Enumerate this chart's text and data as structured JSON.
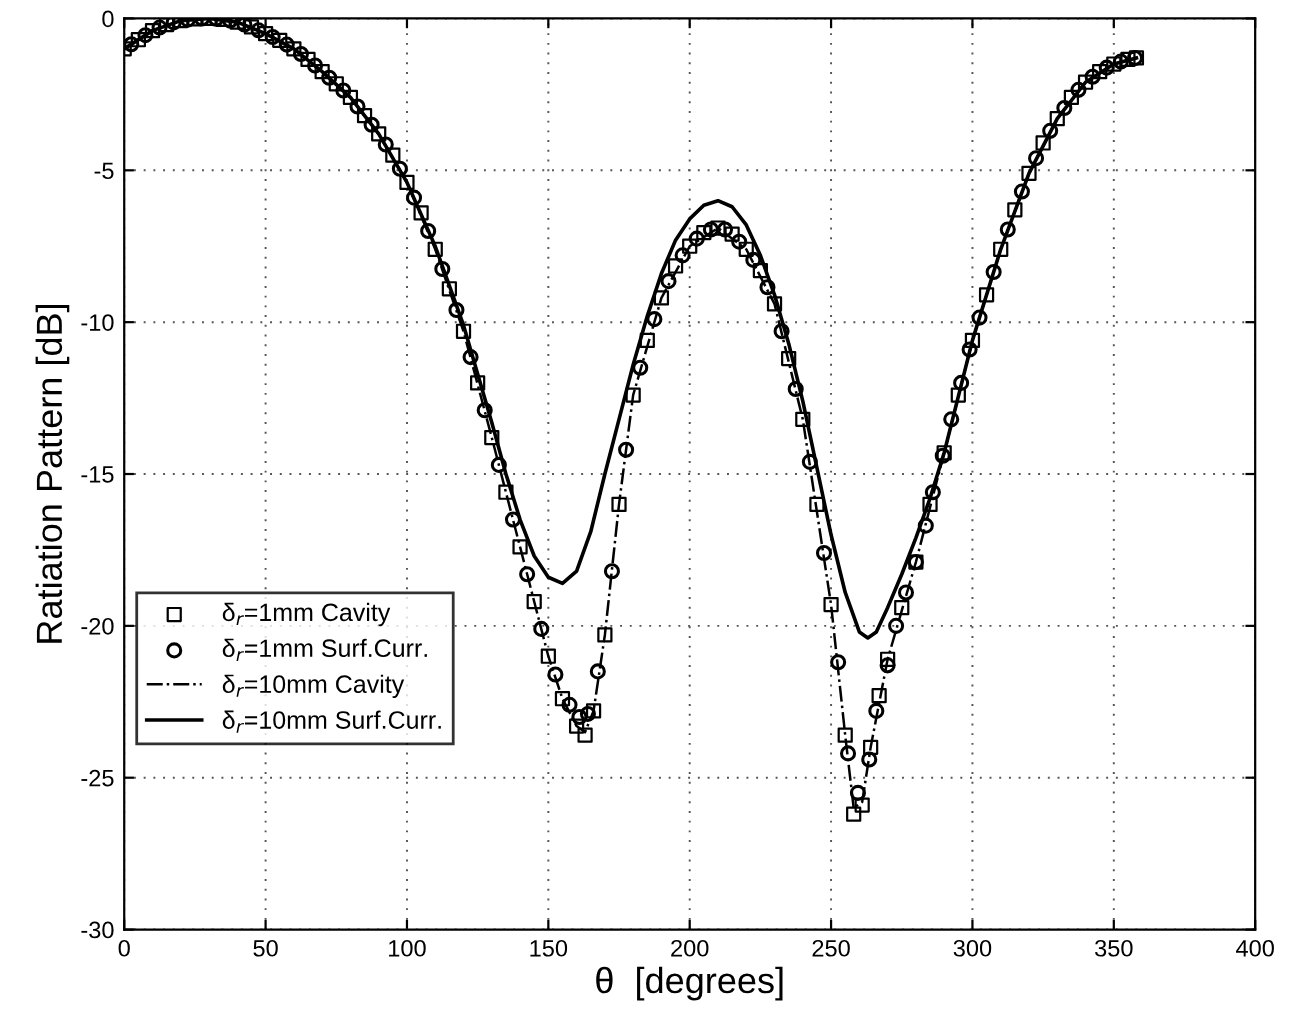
{
  "chart_data": {
    "type": "line",
    "xlabel": "θ  [degrees]",
    "ylabel": "Ratiation Pattern [dB]",
    "xlim": [
      0,
      400
    ],
    "ylim": [
      -30,
      0
    ],
    "xticks": [
      0,
      50,
      100,
      150,
      200,
      250,
      300,
      350,
      400
    ],
    "yticks": [
      -30,
      -25,
      -20,
      -15,
      -10,
      -5,
      0
    ],
    "grid": true,
    "legend": "bottom left",
    "series": [
      {
        "name": "δ$_{r}$=1mm Cavity",
        "type": "scatter",
        "marker": "square",
        "color": "#000000",
        "x": [
          0,
          5,
          10,
          15,
          20,
          25,
          30,
          35,
          40,
          45,
          50,
          55,
          60,
          65,
          70,
          75,
          80,
          85,
          90,
          95,
          100,
          105,
          110,
          115,
          120,
          125,
          130,
          135,
          140,
          145,
          150,
          155,
          160,
          163,
          166,
          170,
          175,
          180,
          185,
          190,
          195,
          200,
          205,
          210,
          215,
          220,
          225,
          230,
          235,
          240,
          245,
          250,
          255,
          258,
          261,
          264,
          267,
          270,
          275,
          280,
          285,
          290,
          295,
          300,
          305,
          310,
          315,
          320,
          325,
          330,
          335,
          340,
          345,
          350,
          355,
          358
        ],
        "values": [
          -1.0,
          -0.7,
          -0.4,
          -0.2,
          -0.07,
          -0.01,
          0,
          -0.03,
          -0.12,
          -0.28,
          -0.5,
          -0.72,
          -1.0,
          -1.35,
          -1.75,
          -2.15,
          -2.6,
          -3.2,
          -3.8,
          -4.5,
          -5.4,
          -6.4,
          -7.6,
          -8.9,
          -10.3,
          -12.0,
          -13.8,
          -15.6,
          -17.4,
          -19.2,
          -21.0,
          -22.4,
          -23.3,
          -23.6,
          -22.8,
          -20.3,
          -16.0,
          -12.4,
          -10.6,
          -9.2,
          -8.15,
          -7.5,
          -7.05,
          -6.9,
          -7.1,
          -7.6,
          -8.3,
          -9.4,
          -11.2,
          -13.2,
          -16.0,
          -19.3,
          -23.6,
          -26.2,
          -25.9,
          -24.0,
          -22.3,
          -21.1,
          -19.4,
          -17.9,
          -16.0,
          -14.3,
          -12.4,
          -10.6,
          -9.1,
          -7.6,
          -6.3,
          -5.1,
          -4.1,
          -3.3,
          -2.6,
          -2.1,
          -1.75,
          -1.5,
          -1.35,
          -1.3
        ]
      },
      {
        "name": "δ$_{r}$=1mm Surf.Curr.",
        "type": "scatter",
        "marker": "circle",
        "color": "#000000",
        "x": [
          2.5,
          7.5,
          12.5,
          17.5,
          22.5,
          27.5,
          32.5,
          37.5,
          42.5,
          47.5,
          52.5,
          57.5,
          62.5,
          67.5,
          72.5,
          77.5,
          82.5,
          87.5,
          92.5,
          97.5,
          102.5,
          107.5,
          112.5,
          117.5,
          122.5,
          127.5,
          132.5,
          137.5,
          142.5,
          147.5,
          152.5,
          157.5,
          161,
          164,
          167.5,
          172.5,
          177.5,
          182.5,
          187.5,
          192.5,
          197.5,
          202.5,
          207.5,
          212.5,
          217.5,
          222.5,
          227.5,
          232.5,
          237.5,
          242.5,
          247.5,
          252.5,
          256,
          259.5,
          263.5,
          266,
          270,
          273,
          276.5,
          280,
          283.5,
          286,
          289.5,
          292.5,
          296,
          299,
          302.5,
          307.5,
          312.5,
          317.5,
          322.5,
          327.5,
          332.5,
          337.5,
          342.5,
          347.5,
          352.5,
          357.5
        ],
        "values": [
          -0.85,
          -0.55,
          -0.3,
          -0.13,
          -0.04,
          0,
          -0.01,
          -0.07,
          -0.2,
          -0.39,
          -0.61,
          -0.86,
          -1.17,
          -1.55,
          -1.95,
          -2.37,
          -2.9,
          -3.5,
          -4.15,
          -4.95,
          -5.9,
          -7.0,
          -8.25,
          -9.6,
          -11.15,
          -12.9,
          -14.7,
          -16.5,
          -18.3,
          -20.1,
          -21.6,
          -22.6,
          -23.0,
          -22.9,
          -21.5,
          -18.2,
          -14.2,
          -11.5,
          -9.9,
          -8.65,
          -7.8,
          -7.25,
          -6.95,
          -6.95,
          -7.35,
          -7.95,
          -8.85,
          -10.3,
          -12.2,
          -14.6,
          -17.6,
          -21.2,
          -24.2,
          -25.5,
          -24.4,
          -22.8,
          -21.3,
          -20.0,
          -18.9,
          -17.9,
          -16.7,
          -15.6,
          -14.4,
          -13.2,
          -12.0,
          -10.9,
          -9.85,
          -8.35,
          -6.95,
          -5.7,
          -4.6,
          -3.7,
          -2.95,
          -2.35,
          -1.92,
          -1.62,
          -1.42,
          -1.3
        ]
      },
      {
        "name": "δ$_{r}$=10mm Cavity",
        "line_style": "dashdot",
        "color": "#000000",
        "x": [
          0,
          10,
          20,
          30,
          40,
          50,
          60,
          70,
          80,
          90,
          100,
          110,
          120,
          130,
          140,
          150,
          155,
          160,
          163,
          166,
          170,
          175,
          180,
          190,
          200,
          210,
          220,
          230,
          240,
          250,
          255,
          258,
          261,
          264,
          270,
          280,
          290,
          300,
          310,
          320,
          330,
          340,
          350,
          358
        ],
        "values": [
          -1.0,
          -0.4,
          -0.07,
          0,
          -0.12,
          -0.5,
          -1.0,
          -1.75,
          -2.6,
          -3.8,
          -5.4,
          -7.6,
          -10.3,
          -13.8,
          -17.4,
          -21.0,
          -22.4,
          -23.3,
          -23.5,
          -22.8,
          -20.3,
          -16.0,
          -12.4,
          -9.2,
          -7.5,
          -6.9,
          -7.6,
          -9.4,
          -13.2,
          -19.3,
          -23.6,
          -26.0,
          -25.8,
          -24.0,
          -21.1,
          -17.9,
          -14.3,
          -10.6,
          -7.6,
          -5.1,
          -3.3,
          -2.1,
          -1.5,
          -1.3
        ]
      },
      {
        "name": "δ$_{r}$=10mm Surf.Curr.",
        "line_style": "solid",
        "color": "#000000",
        "x": [
          0,
          10,
          20,
          30,
          40,
          50,
          60,
          70,
          80,
          90,
          100,
          110,
          120,
          130,
          135,
          140,
          145,
          150,
          155,
          160,
          165,
          170,
          175,
          180,
          185,
          190,
          195,
          200,
          205,
          210,
          215,
          220,
          225,
          230,
          235,
          240,
          245,
          250,
          255,
          260,
          263,
          266,
          270,
          275,
          280,
          285,
          290,
          300,
          310,
          320,
          330,
          340,
          350,
          358
        ],
        "values": [
          -1.0,
          -0.4,
          -0.07,
          0,
          -0.12,
          -0.5,
          -1.0,
          -1.75,
          -2.6,
          -3.8,
          -5.4,
          -7.5,
          -10.1,
          -13.3,
          -15.0,
          -16.5,
          -17.7,
          -18.4,
          -18.6,
          -18.2,
          -16.9,
          -15.0,
          -13.2,
          -11.4,
          -9.8,
          -8.4,
          -7.3,
          -6.6,
          -6.15,
          -6.0,
          -6.2,
          -6.8,
          -7.8,
          -9.1,
          -10.7,
          -12.6,
          -14.8,
          -17.0,
          -18.9,
          -20.2,
          -20.4,
          -20.2,
          -19.4,
          -18.3,
          -17.1,
          -15.8,
          -14.3,
          -10.6,
          -7.6,
          -5.1,
          -3.3,
          -2.1,
          -1.5,
          -1.3
        ]
      }
    ]
  }
}
